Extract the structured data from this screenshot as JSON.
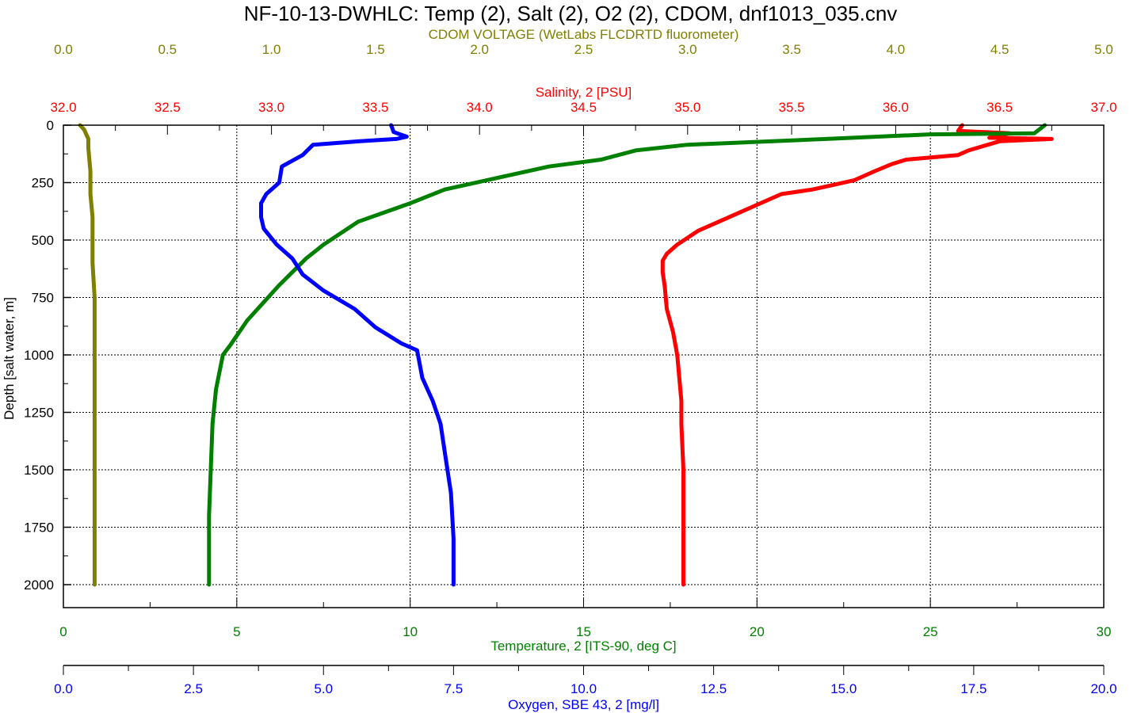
{
  "chart_data": {
    "type": "line",
    "title": "NF-10-13-DWHLC: Temp (2), Salt (2), O2 (2), CDOM, dnf1013_035.cnv",
    "y_axis": {
      "label": "Depth [salt water, m]",
      "range": [
        0,
        2100
      ],
      "inverted": true,
      "ticks": [
        "0",
        "250",
        "500",
        "750",
        "1000",
        "1250",
        "1500",
        "1750",
        "2000"
      ],
      "tick_values": [
        0,
        250,
        500,
        750,
        1000,
        1250,
        1500,
        1750,
        2000
      ],
      "color": "#000000"
    },
    "x_axes": [
      {
        "key": "cdom",
        "label": "CDOM VOLTAGE (WetLabs FLCDRTD fluorometer)",
        "position": "top-outer",
        "range": [
          0,
          5
        ],
        "ticks": [
          "0.0",
          "0.5",
          "1.0",
          "1.5",
          "2.0",
          "2.5",
          "3.0",
          "3.5",
          "4.0",
          "4.5",
          "5.0"
        ],
        "tick_values": [
          0,
          0.5,
          1,
          1.5,
          2,
          2.5,
          3,
          3.5,
          4,
          4.5,
          5
        ],
        "color": "#808000"
      },
      {
        "key": "salinity",
        "label": "Salinity, 2 [PSU]",
        "position": "top-inner",
        "range": [
          32,
          37
        ],
        "ticks": [
          "32.0",
          "32.5",
          "33.0",
          "33.5",
          "34.0",
          "34.5",
          "35.0",
          "35.5",
          "36.0",
          "36.5",
          "37.0"
        ],
        "tick_values": [
          32,
          32.5,
          33,
          33.5,
          34,
          34.5,
          35,
          35.5,
          36,
          36.5,
          37
        ],
        "color": "#ff0000"
      },
      {
        "key": "temperature",
        "label": "Temperature, 2 [ITS-90, deg C]",
        "position": "bottom-inner",
        "range": [
          0,
          30
        ],
        "ticks": [
          "0",
          "5",
          "10",
          "15",
          "20",
          "25",
          "30"
        ],
        "tick_values": [
          0,
          5,
          10,
          15,
          20,
          25,
          30
        ],
        "color": "#008000"
      },
      {
        "key": "oxygen",
        "label": "Oxygen, SBE 43, 2 [mg/l]",
        "position": "bottom-outer",
        "range": [
          0,
          20
        ],
        "ticks": [
          "0.0",
          "2.5",
          "5.0",
          "7.5",
          "10.0",
          "12.5",
          "15.0",
          "17.5",
          "20.0"
        ],
        "tick_values": [
          0,
          2.5,
          5,
          7.5,
          10,
          12.5,
          15,
          17.5,
          20
        ],
        "color": "#0000ff"
      }
    ],
    "grid": true,
    "series": [
      {
        "axis": "cdom",
        "color": "#808000",
        "points": [
          [
            0.08,
            0
          ],
          [
            0.1,
            20
          ],
          [
            0.12,
            60
          ],
          [
            0.12,
            100
          ],
          [
            0.13,
            200
          ],
          [
            0.13,
            300
          ],
          [
            0.14,
            400
          ],
          [
            0.14,
            500
          ],
          [
            0.14,
            600
          ],
          [
            0.15,
            750
          ],
          [
            0.15,
            900
          ],
          [
            0.15,
            1000
          ],
          [
            0.15,
            1200
          ],
          [
            0.15,
            1500
          ],
          [
            0.15,
            1800
          ],
          [
            0.15,
            2000
          ]
        ]
      },
      {
        "axis": "salinity",
        "color": "#ff0000",
        "points": [
          [
            36.32,
            0
          ],
          [
            36.3,
            25
          ],
          [
            36.55,
            35
          ],
          [
            36.45,
            55
          ],
          [
            36.75,
            60
          ],
          [
            36.5,
            70
          ],
          [
            36.35,
            110
          ],
          [
            36.3,
            130
          ],
          [
            36.05,
            150
          ],
          [
            35.98,
            170
          ],
          [
            35.9,
            200
          ],
          [
            35.8,
            240
          ],
          [
            35.7,
            260
          ],
          [
            35.6,
            280
          ],
          [
            35.45,
            300
          ],
          [
            35.35,
            340
          ],
          [
            35.25,
            380
          ],
          [
            35.15,
            420
          ],
          [
            35.05,
            460
          ],
          [
            34.95,
            520
          ],
          [
            34.9,
            560
          ],
          [
            34.88,
            590
          ],
          [
            34.88,
            640
          ],
          [
            34.89,
            700
          ],
          [
            34.9,
            800
          ],
          [
            34.93,
            900
          ],
          [
            34.95,
            1000
          ],
          [
            34.96,
            1100
          ],
          [
            34.97,
            1200
          ],
          [
            34.97,
            1300
          ],
          [
            34.98,
            1500
          ],
          [
            34.98,
            1700
          ],
          [
            34.98,
            1900
          ],
          [
            34.98,
            2000
          ]
        ]
      },
      {
        "axis": "temperature",
        "color": "#008000",
        "points": [
          [
            28.3,
            0
          ],
          [
            28.0,
            35
          ],
          [
            25.0,
            40
          ],
          [
            22.0,
            60
          ],
          [
            18.0,
            85
          ],
          [
            16.5,
            110
          ],
          [
            15.5,
            150
          ],
          [
            14.0,
            180
          ],
          [
            12.5,
            230
          ],
          [
            11.0,
            280
          ],
          [
            10.0,
            340
          ],
          [
            8.5,
            420
          ],
          [
            7.5,
            520
          ],
          [
            7.0,
            580
          ],
          [
            6.2,
            700
          ],
          [
            5.3,
            850
          ],
          [
            4.8,
            960
          ],
          [
            4.6,
            1000
          ],
          [
            4.4,
            1150
          ],
          [
            4.3,
            1300
          ],
          [
            4.25,
            1500
          ],
          [
            4.2,
            1700
          ],
          [
            4.2,
            1900
          ],
          [
            4.2,
            2000
          ]
        ]
      },
      {
        "axis": "oxygen",
        "color": "#0000ff",
        "points": [
          [
            6.3,
            0
          ],
          [
            6.35,
            30
          ],
          [
            6.6,
            50
          ],
          [
            6.4,
            60
          ],
          [
            5.7,
            70
          ],
          [
            4.8,
            85
          ],
          [
            4.6,
            130
          ],
          [
            4.2,
            180
          ],
          [
            4.15,
            250
          ],
          [
            3.9,
            300
          ],
          [
            3.8,
            340
          ],
          [
            3.8,
            400
          ],
          [
            3.85,
            450
          ],
          [
            4.1,
            520
          ],
          [
            4.4,
            580
          ],
          [
            4.6,
            650
          ],
          [
            5.0,
            720
          ],
          [
            5.6,
            800
          ],
          [
            6.0,
            880
          ],
          [
            6.5,
            950
          ],
          [
            6.8,
            980
          ],
          [
            6.9,
            1100
          ],
          [
            7.1,
            1200
          ],
          [
            7.25,
            1300
          ],
          [
            7.35,
            1450
          ],
          [
            7.45,
            1600
          ],
          [
            7.5,
            1800
          ],
          [
            7.5,
            2000
          ]
        ]
      }
    ]
  }
}
